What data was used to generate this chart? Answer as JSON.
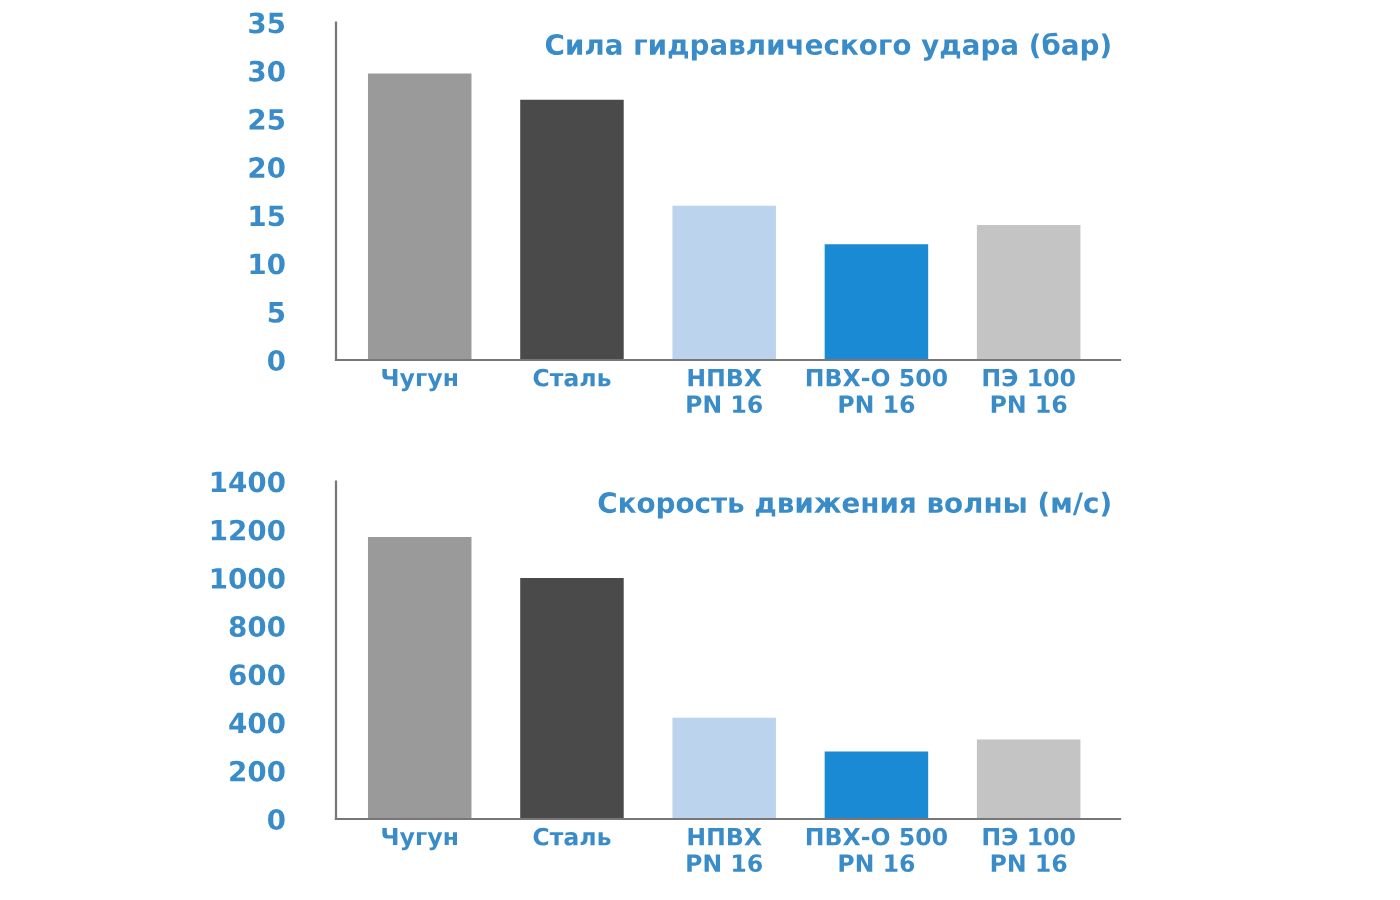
{
  "chart_data": [
    {
      "type": "bar",
      "title": "Сила гидравлического удара (бар)",
      "categories": [
        "Чугун",
        "Сталь",
        "НПВХ\nPN 16",
        "ПВХ-О 500\nPN 16",
        "ПЭ 100\nPN 16"
      ],
      "values": [
        29.7,
        27,
        16,
        12,
        14
      ],
      "colors": [
        "#9a9a9a",
        "#4a4a4a",
        "#bcd3ee",
        "#1a8ad4",
        "#c4c4c4"
      ],
      "ylim": [
        0,
        35
      ],
      "yticks": [
        0,
        5,
        10,
        15,
        20,
        25,
        30,
        35
      ],
      "grid": false
    },
    {
      "type": "bar",
      "title": "Скорость движения волны (м/с)",
      "categories": [
        "Чугун",
        "Сталь",
        "НПВХ\nPN 16",
        "ПВХ-О 500\nPN 16",
        "ПЭ 100\nPN 16"
      ],
      "values": [
        1170,
        1000,
        420,
        280,
        330
      ],
      "colors": [
        "#9a9a9a",
        "#4a4a4a",
        "#bcd3ee",
        "#1a8ad4",
        "#c4c4c4"
      ],
      "ylim": [
        0,
        1400
      ],
      "yticks": [
        0,
        200,
        400,
        600,
        800,
        1000,
        1200,
        1400
      ],
      "grid": false
    }
  ]
}
